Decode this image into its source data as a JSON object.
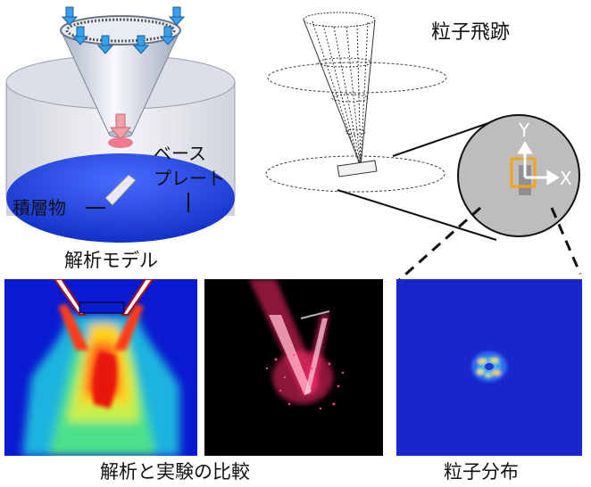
{
  "model_panel": {
    "caption": "解析モデル",
    "base_plate_line1": "ベース",
    "base_plate_line2": "プレート",
    "deposit_label": "積層物"
  },
  "trajectory_panel": {
    "title": "粒子飛跡",
    "axis_y": "Y",
    "axis_x": "X"
  },
  "comparison_panel": {
    "caption": "解析と実験の比較"
  },
  "distribution_panel": {
    "caption": "粒子分布"
  },
  "colors": {
    "plate_blue": "#1a3fd6",
    "sim_background": "#0a1ad0",
    "particle_red": "#ff2a6a",
    "distribution_bg": "#1826c8",
    "highlight_orange": "#f4a21a",
    "circle_gray": "#bdbdbd"
  },
  "icons": [
    "down-arrow-icon",
    "axis-arrow-icon"
  ]
}
